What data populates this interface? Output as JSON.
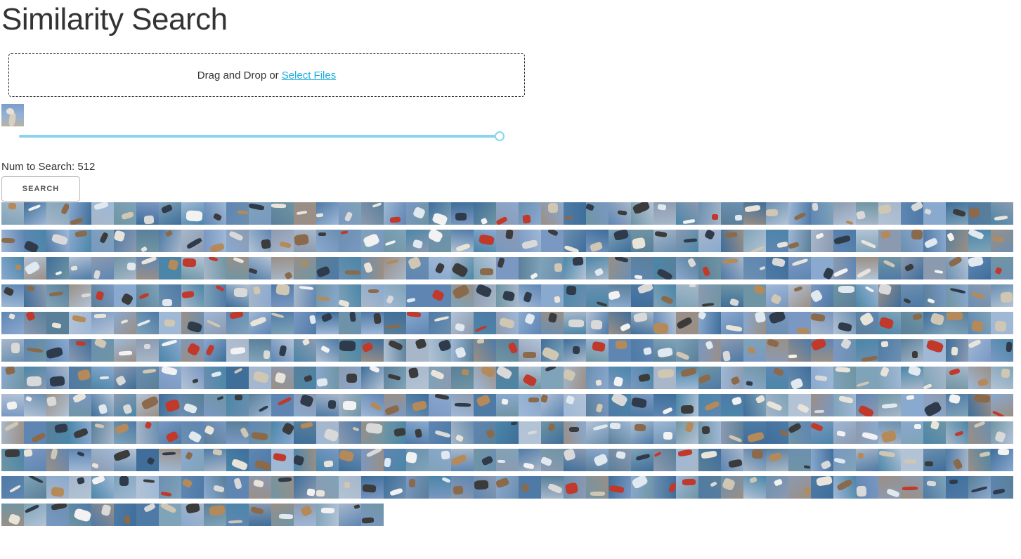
{
  "page": {
    "title": "Similarity Search"
  },
  "upload": {
    "prompt": "Drag and Drop or",
    "link_label": "Select Files"
  },
  "query_image": {
    "icon": "bird-thumbnail"
  },
  "slider": {
    "value_fraction": 1.0
  },
  "num_to_search": {
    "label": "Num to Search: 512"
  },
  "search_button": {
    "label": "SEARCH"
  },
  "results": {
    "rows": 12,
    "per_row": 45,
    "last_row_count": 17,
    "palette": [
      "#5f86b3",
      "#7a98c2",
      "#8aa9cf",
      "#4f7aa6",
      "#9fb8d6",
      "#6b8fb0",
      "#3f6e9a",
      "#7fa3b8",
      "#a7b7c9",
      "#5a7f99",
      "#8c9ab0",
      "#4b86a8",
      "#9a8f86",
      "#6f95a4",
      "#b3c3d6"
    ],
    "object_palette": [
      "#e9e4da",
      "#cfc6b3",
      "#3b3b3b",
      "#d9d9d9",
      "#8a6a4a",
      "#c0392b",
      "#f2f2f2",
      "#2f3b4a",
      "#b58a5a",
      "#e0e8f0"
    ]
  }
}
